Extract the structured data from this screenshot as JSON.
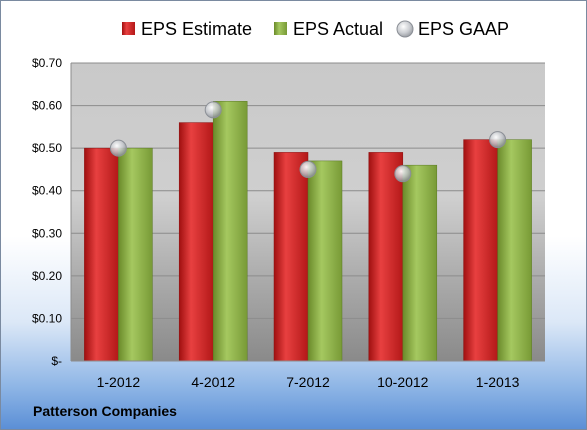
{
  "company": "Patterson Companies",
  "colors": {
    "estimate": "#d42a2a",
    "actual": "#8fb34a",
    "gaap": "#b9bcc2"
  },
  "chart_data": {
    "type": "bar",
    "categories": [
      "1-2012",
      "4-2012",
      "7-2012",
      "10-2012",
      "1-2013"
    ],
    "series": [
      {
        "name": "EPS Estimate",
        "values": [
          0.5,
          0.56,
          0.49,
          0.49,
          0.52
        ]
      },
      {
        "name": "EPS Actual",
        "values": [
          0.5,
          0.61,
          0.47,
          0.46,
          0.52
        ]
      },
      {
        "name": "EPS GAAP",
        "type": "scatter",
        "values": [
          0.5,
          0.59,
          0.45,
          0.44,
          0.52
        ]
      }
    ],
    "y_ticks": [
      "$-",
      "$0.10",
      "$0.20",
      "$0.30",
      "$0.40",
      "$0.50",
      "$0.60",
      "$0.70"
    ],
    "ylim": [
      0,
      0.7
    ],
    "grid": true,
    "legend": "top"
  }
}
